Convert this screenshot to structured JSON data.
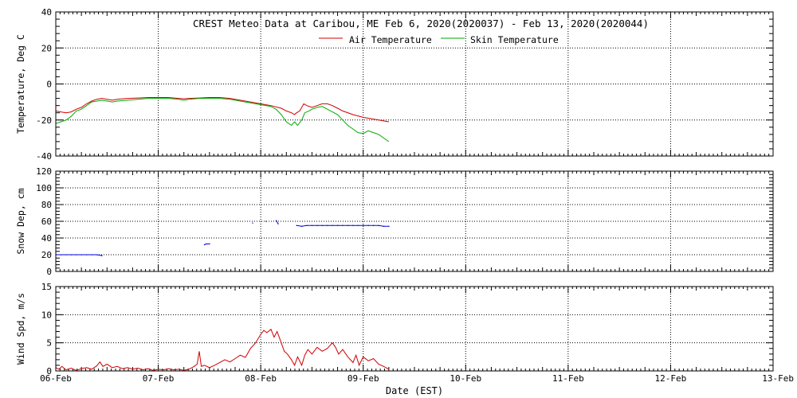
{
  "chart_data": [
    {
      "type": "line",
      "title": "CREST Meteo Data at Caribou, ME   Feb  6, 2020(2020037) - Feb 13, 2020(2020044)",
      "xlabel": "Date (EST)",
      "ylabel": "Temperature, Deg C",
      "x_unit": "days since 06-Feb",
      "xlim": [
        0,
        7
      ],
      "ylim": [
        -40,
        40
      ],
      "yticks": [
        -40,
        -20,
        0,
        20,
        40
      ],
      "grid": true,
      "legend": "top-center",
      "series": [
        {
          "name": "Air Temperature",
          "color": "#d00000",
          "points": [
            [
              0,
              -15
            ],
            [
              0.05,
              -15.5
            ],
            [
              0.1,
              -16
            ],
            [
              0.15,
              -15.5
            ],
            [
              0.2,
              -14
            ],
            [
              0.25,
              -13
            ],
            [
              0.3,
              -11
            ],
            [
              0.35,
              -9.5
            ],
            [
              0.4,
              -8.5
            ],
            [
              0.45,
              -8
            ],
            [
              0.5,
              -8.5
            ],
            [
              0.55,
              -9
            ],
            [
              0.6,
              -8.5
            ],
            [
              0.7,
              -8
            ],
            [
              0.8,
              -7.8
            ],
            [
              0.9,
              -7.5
            ],
            [
              1.0,
              -7.5
            ],
            [
              1.1,
              -7.5
            ],
            [
              1.2,
              -8
            ],
            [
              1.25,
              -8.2
            ],
            [
              1.3,
              -8
            ],
            [
              1.4,
              -7.8
            ],
            [
              1.5,
              -7.5
            ],
            [
              1.6,
              -7.5
            ],
            [
              1.7,
              -8
            ],
            [
              1.8,
              -9
            ],
            [
              1.9,
              -10
            ],
            [
              2.0,
              -11
            ],
            [
              2.1,
              -12
            ],
            [
              2.2,
              -13.5
            ],
            [
              2.25,
              -15
            ],
            [
              2.3,
              -16
            ],
            [
              2.33,
              -17
            ],
            [
              2.35,
              -16
            ],
            [
              2.38,
              -15
            ],
            [
              2.4,
              -13
            ],
            [
              2.42,
              -11
            ],
            [
              2.45,
              -12
            ],
            [
              2.5,
              -13
            ],
            [
              2.55,
              -12
            ],
            [
              2.6,
              -11
            ],
            [
              2.65,
              -11
            ],
            [
              2.7,
              -12
            ],
            [
              2.75,
              -13.5
            ],
            [
              2.8,
              -15
            ],
            [
              2.9,
              -17
            ],
            [
              3.0,
              -18.5
            ],
            [
              3.1,
              -19.5
            ],
            [
              3.2,
              -20.5
            ],
            [
              3.25,
              -21
            ]
          ]
        },
        {
          "name": "Skin Temperature",
          "color": "#00aa00",
          "points": [
            [
              0,
              -22
            ],
            [
              0.05,
              -21
            ],
            [
              0.1,
              -20
            ],
            [
              0.15,
              -18
            ],
            [
              0.2,
              -15
            ],
            [
              0.25,
              -14
            ],
            [
              0.3,
              -12
            ],
            [
              0.35,
              -10
            ],
            [
              0.4,
              -9.5
            ],
            [
              0.45,
              -9
            ],
            [
              0.5,
              -9.5
            ],
            [
              0.55,
              -10
            ],
            [
              0.6,
              -9.5
            ],
            [
              0.7,
              -9
            ],
            [
              0.8,
              -8.5
            ],
            [
              0.9,
              -8
            ],
            [
              1.0,
              -8
            ],
            [
              1.1,
              -8
            ],
            [
              1.2,
              -8.5
            ],
            [
              1.25,
              -9
            ],
            [
              1.3,
              -8.5
            ],
            [
              1.4,
              -8
            ],
            [
              1.5,
              -8
            ],
            [
              1.6,
              -8
            ],
            [
              1.7,
              -8.5
            ],
            [
              1.8,
              -9.5
            ],
            [
              1.9,
              -10.5
            ],
            [
              2.0,
              -11.5
            ],
            [
              2.1,
              -12.5
            ],
            [
              2.15,
              -14
            ],
            [
              2.2,
              -17
            ],
            [
              2.25,
              -21
            ],
            [
              2.3,
              -23
            ],
            [
              2.33,
              -21
            ],
            [
              2.36,
              -23
            ],
            [
              2.4,
              -20
            ],
            [
              2.43,
              -16
            ],
            [
              2.47,
              -15
            ],
            [
              2.5,
              -14
            ],
            [
              2.55,
              -13
            ],
            [
              2.6,
              -12.5
            ],
            [
              2.65,
              -14
            ],
            [
              2.7,
              -15.5
            ],
            [
              2.75,
              -17
            ],
            [
              2.8,
              -20
            ],
            [
              2.85,
              -23
            ],
            [
              2.9,
              -25
            ],
            [
              2.95,
              -27
            ],
            [
              3.0,
              -27.5
            ],
            [
              3.05,
              -26
            ],
            [
              3.1,
              -27
            ],
            [
              3.15,
              -28
            ],
            [
              3.2,
              -30
            ],
            [
              3.25,
              -32
            ]
          ]
        }
      ]
    },
    {
      "type": "scatter",
      "xlabel": "Date (EST)",
      "ylabel": "Snow Dep, cm",
      "x_unit": "days since 06-Feb",
      "xlim": [
        0,
        7
      ],
      "ylim": [
        0,
        120
      ],
      "yticks": [
        0,
        20,
        40,
        60,
        80,
        100,
        120
      ],
      "grid": true,
      "series": [
        {
          "name": "Snow Depth",
          "color": "#0000dd",
          "points": [
            [
              0.0,
              20
            ],
            [
              0.05,
              20
            ],
            [
              0.1,
              20
            ],
            [
              0.15,
              20
            ],
            [
              0.2,
              20
            ],
            [
              0.25,
              20
            ],
            [
              0.3,
              20
            ],
            [
              0.35,
              20
            ],
            [
              0.4,
              20
            ],
            [
              0.45,
              19
            ],
            [
              1.45,
              32
            ],
            [
              1.47,
              33
            ],
            [
              1.5,
              33
            ],
            [
              1.92,
              58
            ],
            [
              2.05,
              60
            ],
            [
              2.15,
              61
            ],
            [
              2.17,
              57
            ],
            [
              2.35,
              55
            ],
            [
              2.4,
              54
            ],
            [
              2.45,
              55
            ],
            [
              2.5,
              55
            ],
            [
              2.55,
              55
            ],
            [
              2.6,
              55
            ],
            [
              2.65,
              55
            ],
            [
              2.7,
              55
            ],
            [
              2.75,
              55
            ],
            [
              2.8,
              55
            ],
            [
              2.85,
              55
            ],
            [
              2.9,
              55
            ],
            [
              2.95,
              55
            ],
            [
              3.0,
              55
            ],
            [
              3.05,
              55
            ],
            [
              3.1,
              55
            ],
            [
              3.15,
              55
            ],
            [
              3.2,
              54
            ],
            [
              3.25,
              54
            ]
          ]
        }
      ]
    },
    {
      "type": "line",
      "xlabel": "Date (EST)",
      "ylabel": "Wind Spd, m/s",
      "x_unit": "days since 06-Feb",
      "xlim": [
        0,
        7
      ],
      "ylim": [
        0,
        15
      ],
      "yticks": [
        0,
        5,
        10,
        15
      ],
      "grid": true,
      "series": [
        {
          "name": "Wind Speed",
          "color": "#d00000",
          "points": [
            [
              0,
              0.6
            ],
            [
              0.03,
              0.3
            ],
            [
              0.06,
              0.8
            ],
            [
              0.1,
              0.2
            ],
            [
              0.15,
              0.5
            ],
            [
              0.2,
              0.1
            ],
            [
              0.25,
              0.4
            ],
            [
              0.3,
              0.6
            ],
            [
              0.35,
              0.3
            ],
            [
              0.4,
              0.9
            ],
            [
              0.43,
              1.6
            ],
            [
              0.46,
              0.8
            ],
            [
              0.5,
              1.2
            ],
            [
              0.55,
              0.6
            ],
            [
              0.6,
              0.8
            ],
            [
              0.65,
              0.4
            ],
            [
              0.7,
              0.6
            ],
            [
              0.75,
              0.3
            ],
            [
              0.8,
              0.5
            ],
            [
              0.85,
              0.2
            ],
            [
              0.9,
              0.4
            ],
            [
              0.95,
              0.1
            ],
            [
              1.0,
              0.3
            ],
            [
              1.05,
              0.2
            ],
            [
              1.1,
              0.4
            ],
            [
              1.15,
              0.2
            ],
            [
              1.2,
              0.3
            ],
            [
              1.25,
              0.1
            ],
            [
              1.3,
              0.3
            ],
            [
              1.35,
              0.8
            ],
            [
              1.38,
              1.2
            ],
            [
              1.4,
              3.5
            ],
            [
              1.42,
              0.8
            ],
            [
              1.45,
              1.0
            ],
            [
              1.5,
              0.6
            ],
            [
              1.55,
              1.0
            ],
            [
              1.6,
              1.5
            ],
            [
              1.65,
              2.0
            ],
            [
              1.7,
              1.6
            ],
            [
              1.75,
              2.2
            ],
            [
              1.8,
              2.8
            ],
            [
              1.85,
              2.4
            ],
            [
              1.9,
              4.0
            ],
            [
              1.95,
              5.0
            ],
            [
              2.0,
              6.5
            ],
            [
              2.03,
              7.2
            ],
            [
              2.06,
              6.8
            ],
            [
              2.1,
              7.4
            ],
            [
              2.13,
              6.0
            ],
            [
              2.16,
              7.0
            ],
            [
              2.2,
              5.0
            ],
            [
              2.23,
              3.5
            ],
            [
              2.26,
              3.0
            ],
            [
              2.3,
              2.0
            ],
            [
              2.33,
              1.0
            ],
            [
              2.36,
              2.5
            ],
            [
              2.4,
              1.0
            ],
            [
              2.43,
              2.8
            ],
            [
              2.46,
              3.8
            ],
            [
              2.5,
              3.0
            ],
            [
              2.55,
              4.2
            ],
            [
              2.6,
              3.5
            ],
            [
              2.65,
              4.0
            ],
            [
              2.7,
              5.0
            ],
            [
              2.73,
              4.2
            ],
            [
              2.76,
              3.0
            ],
            [
              2.8,
              3.8
            ],
            [
              2.85,
              2.5
            ],
            [
              2.9,
              1.5
            ],
            [
              2.93,
              2.8
            ],
            [
              2.96,
              1.0
            ],
            [
              3.0,
              2.5
            ],
            [
              3.05,
              1.8
            ],
            [
              3.1,
              2.2
            ],
            [
              3.15,
              1.2
            ],
            [
              3.2,
              0.8
            ],
            [
              3.25,
              0.3
            ]
          ]
        }
      ]
    }
  ],
  "x_tick_labels": [
    "06-Feb",
    "07-Feb",
    "08-Feb",
    "09-Feb",
    "10-Feb",
    "11-Feb",
    "12-Feb",
    "13-Feb"
  ]
}
